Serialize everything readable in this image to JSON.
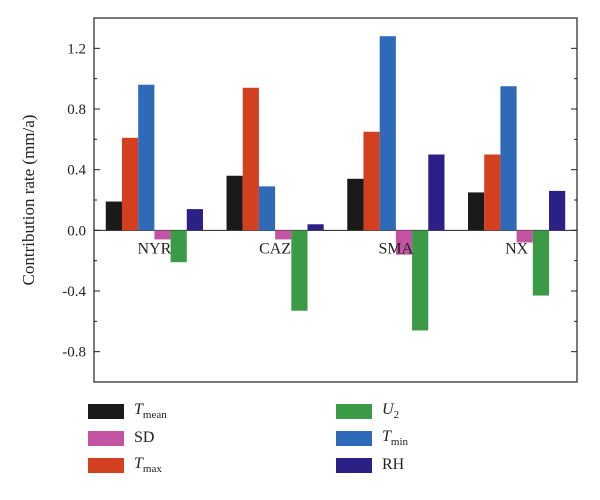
{
  "chart_data": {
    "type": "bar",
    "categories": [
      "NYR",
      "CAZ",
      "SMA",
      "NX"
    ],
    "series": [
      {
        "name": "Tmean",
        "symbol": "T",
        "subscript": "mean",
        "italic": true,
        "color": "#1a1a1a",
        "values": [
          0.19,
          0.36,
          0.34,
          0.25
        ]
      },
      {
        "name": "Tmax",
        "symbol": "T",
        "subscript": "max",
        "italic": true,
        "color": "#d2401f",
        "values": [
          0.61,
          0.94,
          0.65,
          0.5
        ]
      },
      {
        "name": "Tmin",
        "symbol": "T",
        "subscript": "min",
        "italic": true,
        "color": "#2f6ab8",
        "values": [
          0.96,
          0.29,
          1.28,
          0.95
        ]
      },
      {
        "name": "SD",
        "symbol": "SD",
        "subscript": "",
        "italic": false,
        "color": "#c354a4",
        "values": [
          -0.06,
          -0.06,
          -0.16,
          -0.08
        ]
      },
      {
        "name": "U2",
        "symbol": "U",
        "subscript": "2",
        "italic": true,
        "color": "#3a9a46",
        "values": [
          -0.21,
          -0.53,
          -0.66,
          -0.43
        ]
      },
      {
        "name": "RH",
        "symbol": "RH",
        "subscript": "",
        "italic": false,
        "color": "#2c1f86",
        "values": [
          0.14,
          0.04,
          0.5,
          0.26
        ]
      }
    ],
    "ylabel": "Contribution rate (mm/a)",
    "xlabel": "",
    "ylim": [
      -1.0,
      1.4
    ],
    "yticks": [
      -0.8,
      -0.4,
      0.0,
      0.4,
      0.8,
      1.2
    ],
    "ytick_labels": [
      "-0.8",
      "-0.4",
      "0.0",
      "0.4",
      "0.8",
      "1.2"
    ],
    "grid": false,
    "legend_position": "bottom",
    "legend_order": [
      "Tmean",
      "SD",
      "Tmax",
      "U2",
      "Tmin",
      "RH"
    ]
  }
}
